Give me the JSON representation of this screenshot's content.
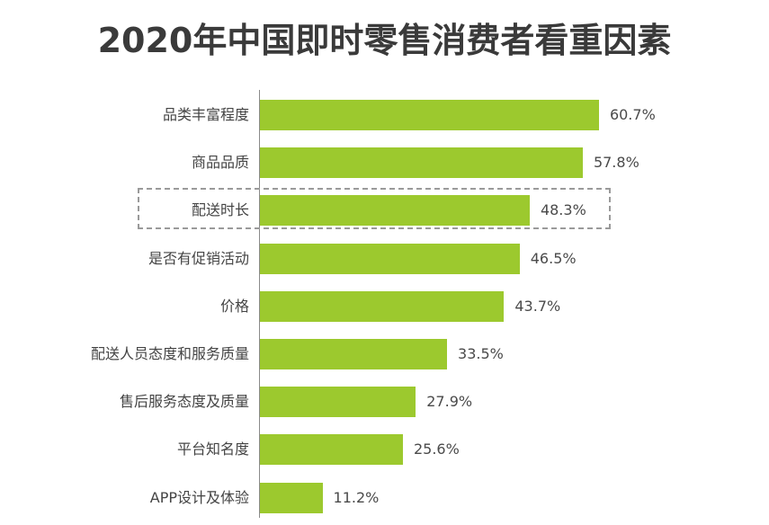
{
  "title": "2020年中国即时零售消费者看重因素",
  "bar_color": "#9cc92e",
  "highlight_index": 2,
  "chart_data": {
    "type": "bar",
    "orientation": "horizontal",
    "title": "2020年中国即时零售消费者看重因素",
    "xlabel": "",
    "ylabel": "",
    "categories": [
      "品类丰富程度",
      "商品品质",
      "配送时长",
      "是否有促销活动",
      "价格",
      "配送人员态度和服务质量",
      "售后服务态度及质量",
      "平台知名度",
      "APP设计及体验"
    ],
    "values": [
      60.7,
      57.8,
      48.3,
      46.5,
      43.7,
      33.5,
      27.9,
      25.6,
      11.2
    ],
    "value_labels": [
      "60.7%",
      "57.8%",
      "48.3%",
      "46.5%",
      "43.7%",
      "33.5%",
      "27.9%",
      "25.6%",
      "11.2%"
    ],
    "grid": false,
    "legend": null,
    "annotations": [
      "dashed box highlighting 配送时长 48.3%"
    ]
  }
}
